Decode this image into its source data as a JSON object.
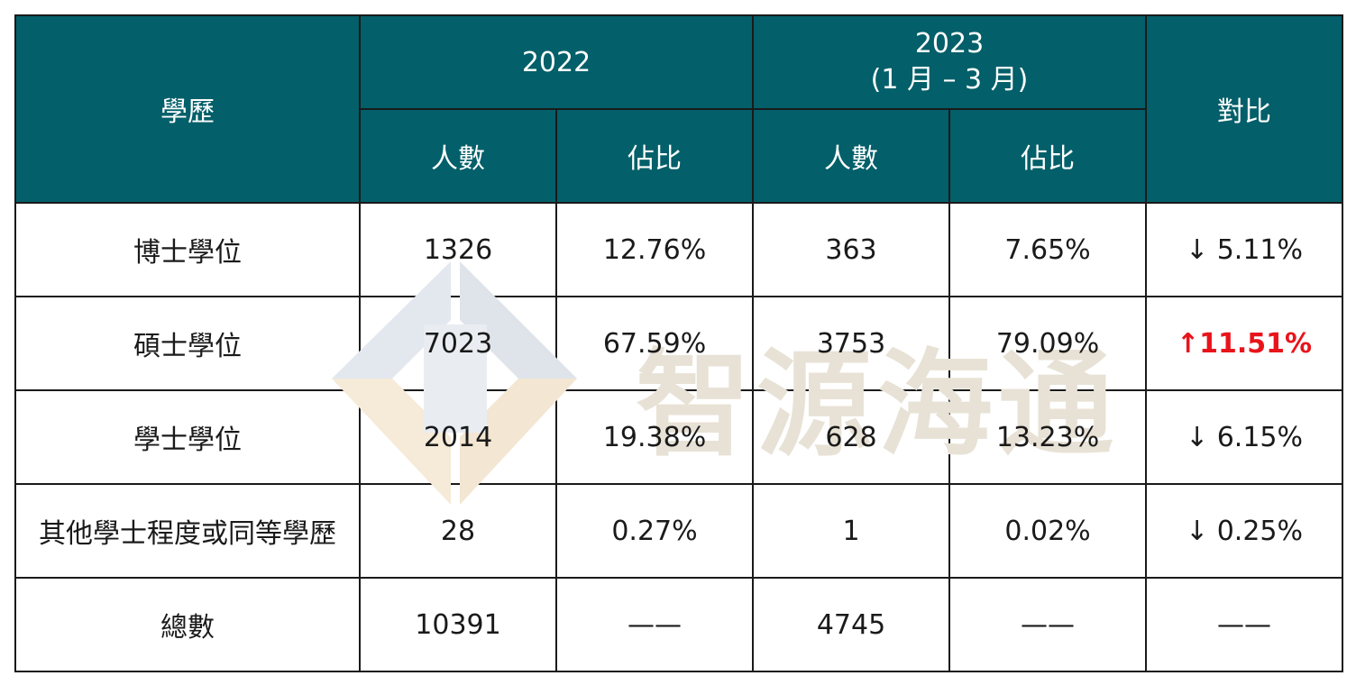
{
  "watermark": {
    "text": "智源海通",
    "color": "#e8e2d6"
  },
  "colors": {
    "header_bg": "#035f69",
    "header_text": "#ffffff",
    "increase": "#e8141b",
    "border": "#1a1a1a"
  },
  "chart_data": {
    "type": "table",
    "header": {
      "education": "學歷",
      "year_2022": "2022",
      "year_2023_line1": "2023",
      "year_2023_line2": "(1 月 – 3 月)",
      "comparison": "對比",
      "count": "人數",
      "share": "佔比"
    },
    "rows": [
      {
        "label": "博士學位",
        "count_2022": "1326",
        "share_2022": "12.76%",
        "count_2023": "363",
        "share_2023": "7.65%",
        "change": "↓ 5.11%",
        "change_direction": "down"
      },
      {
        "label": "碩士學位",
        "count_2022": "7023",
        "share_2022": "67.59%",
        "count_2023": "3753",
        "share_2023": "79.09%",
        "change": "↑11.51%",
        "change_direction": "up"
      },
      {
        "label": "學士學位",
        "count_2022": "2014",
        "share_2022": "19.38%",
        "count_2023": "628",
        "share_2023": "13.23%",
        "change": "↓ 6.15%",
        "change_direction": "down"
      },
      {
        "label": "其他學士程度或同等學歷",
        "count_2022": "28",
        "share_2022": "0.27%",
        "count_2023": "1",
        "share_2023": "0.02%",
        "change": "↓ 0.25%",
        "change_direction": "down"
      },
      {
        "label": "總數",
        "count_2022": "10391",
        "share_2022": "——",
        "count_2023": "4745",
        "share_2023": "——",
        "change": "——",
        "change_direction": "none"
      }
    ]
  }
}
